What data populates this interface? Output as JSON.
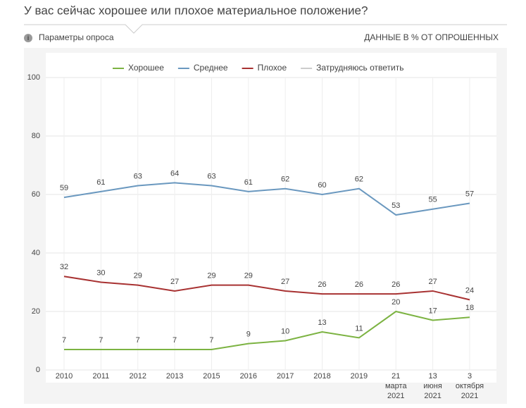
{
  "title": "У вас сейчас хорошее или плохое материальное положение?",
  "survey_params": "Параметры опроса",
  "units_note": "ДАННЫЕ В % ОТ ОПРОШЕННЫХ",
  "chart_data": {
    "type": "line",
    "categories": [
      "2010",
      "2011",
      "2012",
      "2013",
      "2015",
      "2016",
      "2017",
      "2018",
      "2019",
      "21 марта 2021",
      "13 июня 2021",
      "3 октября 2021"
    ],
    "series": [
      {
        "name": "Хорошее",
        "color": "#7cb342",
        "values": [
          7,
          7,
          7,
          7,
          7,
          9,
          10,
          13,
          11,
          20,
          17,
          18
        ]
      },
      {
        "name": "Среднее",
        "color": "#6a98bf",
        "values": [
          59,
          61,
          63,
          64,
          63,
          61,
          62,
          60,
          62,
          53,
          55,
          57
        ]
      },
      {
        "name": "Плохое",
        "color": "#a83232",
        "values": [
          32,
          30,
          29,
          27,
          29,
          29,
          27,
          26,
          26,
          26,
          27,
          24
        ]
      },
      {
        "name": "Затрудняюсь ответить",
        "color": "#cccccc",
        "visible": false,
        "values": [
          null,
          null,
          null,
          null,
          null,
          null,
          null,
          null,
          null,
          null,
          null,
          null
        ]
      }
    ],
    "ylim": [
      0,
      100
    ],
    "yticks": [
      0,
      20,
      40,
      60,
      80,
      100
    ],
    "grid": true,
    "legend": "top"
  }
}
